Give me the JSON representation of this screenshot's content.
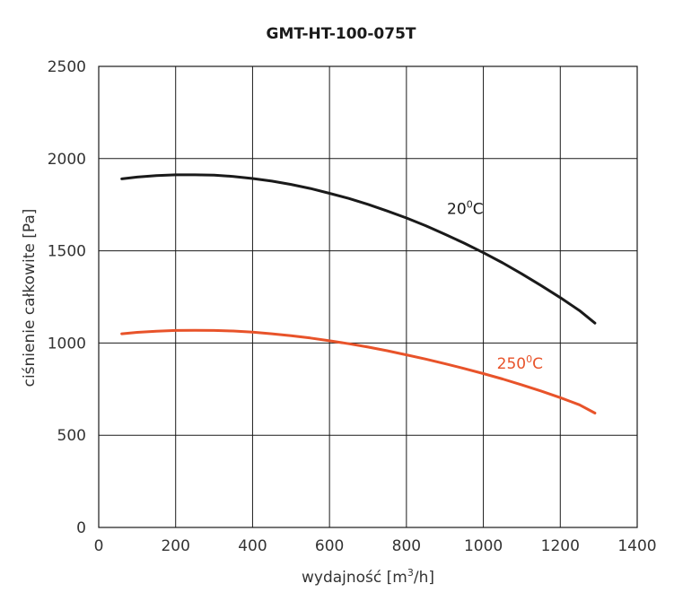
{
  "chart_data": {
    "type": "line",
    "title": "GMT-HT-100-075T",
    "xlabel": "wydajność [m³/h]",
    "xlabel_prefix": "wydajność [m",
    "xlabel_sup": "3",
    "xlabel_suffix": "/h]",
    "ylabel": "ciśnienie całkowite [Pa]",
    "xlim": [
      0,
      1400
    ],
    "ylim": [
      0,
      2500
    ],
    "xticks": [
      0,
      200,
      400,
      600,
      800,
      1000,
      1200,
      1400
    ],
    "yticks": [
      0,
      500,
      1000,
      1500,
      2000,
      2500
    ],
    "grid": true,
    "series": [
      {
        "name": "20°C",
        "label_main": "20",
        "label_sup": "0",
        "label_unit": "C",
        "color": "#1a1a1a",
        "x": [
          60,
          100,
          150,
          200,
          250,
          300,
          350,
          400,
          450,
          500,
          550,
          600,
          650,
          700,
          750,
          800,
          850,
          900,
          950,
          1000,
          1050,
          1100,
          1150,
          1200,
          1250,
          1290
        ],
        "y": [
          1890,
          1900,
          1908,
          1912,
          1912,
          1910,
          1903,
          1892,
          1878,
          1860,
          1838,
          1812,
          1784,
          1752,
          1716,
          1678,
          1636,
          1590,
          1542,
          1490,
          1435,
          1375,
          1312,
          1246,
          1176,
          1108
        ]
      },
      {
        "name": "250°C",
        "label_main": "250",
        "label_sup": "0",
        "label_unit": "C",
        "color": "#e8532a",
        "x": [
          60,
          100,
          150,
          200,
          250,
          300,
          350,
          400,
          450,
          500,
          550,
          600,
          650,
          700,
          750,
          800,
          850,
          900,
          950,
          1000,
          1050,
          1100,
          1150,
          1200,
          1250,
          1290
        ],
        "y": [
          1050,
          1058,
          1064,
          1068,
          1069,
          1068,
          1065,
          1059,
          1050,
          1040,
          1027,
          1012,
          996,
          978,
          958,
          936,
          913,
          888,
          862,
          834,
          805,
          773,
          740,
          704,
          665,
          620
        ]
      }
    ]
  }
}
